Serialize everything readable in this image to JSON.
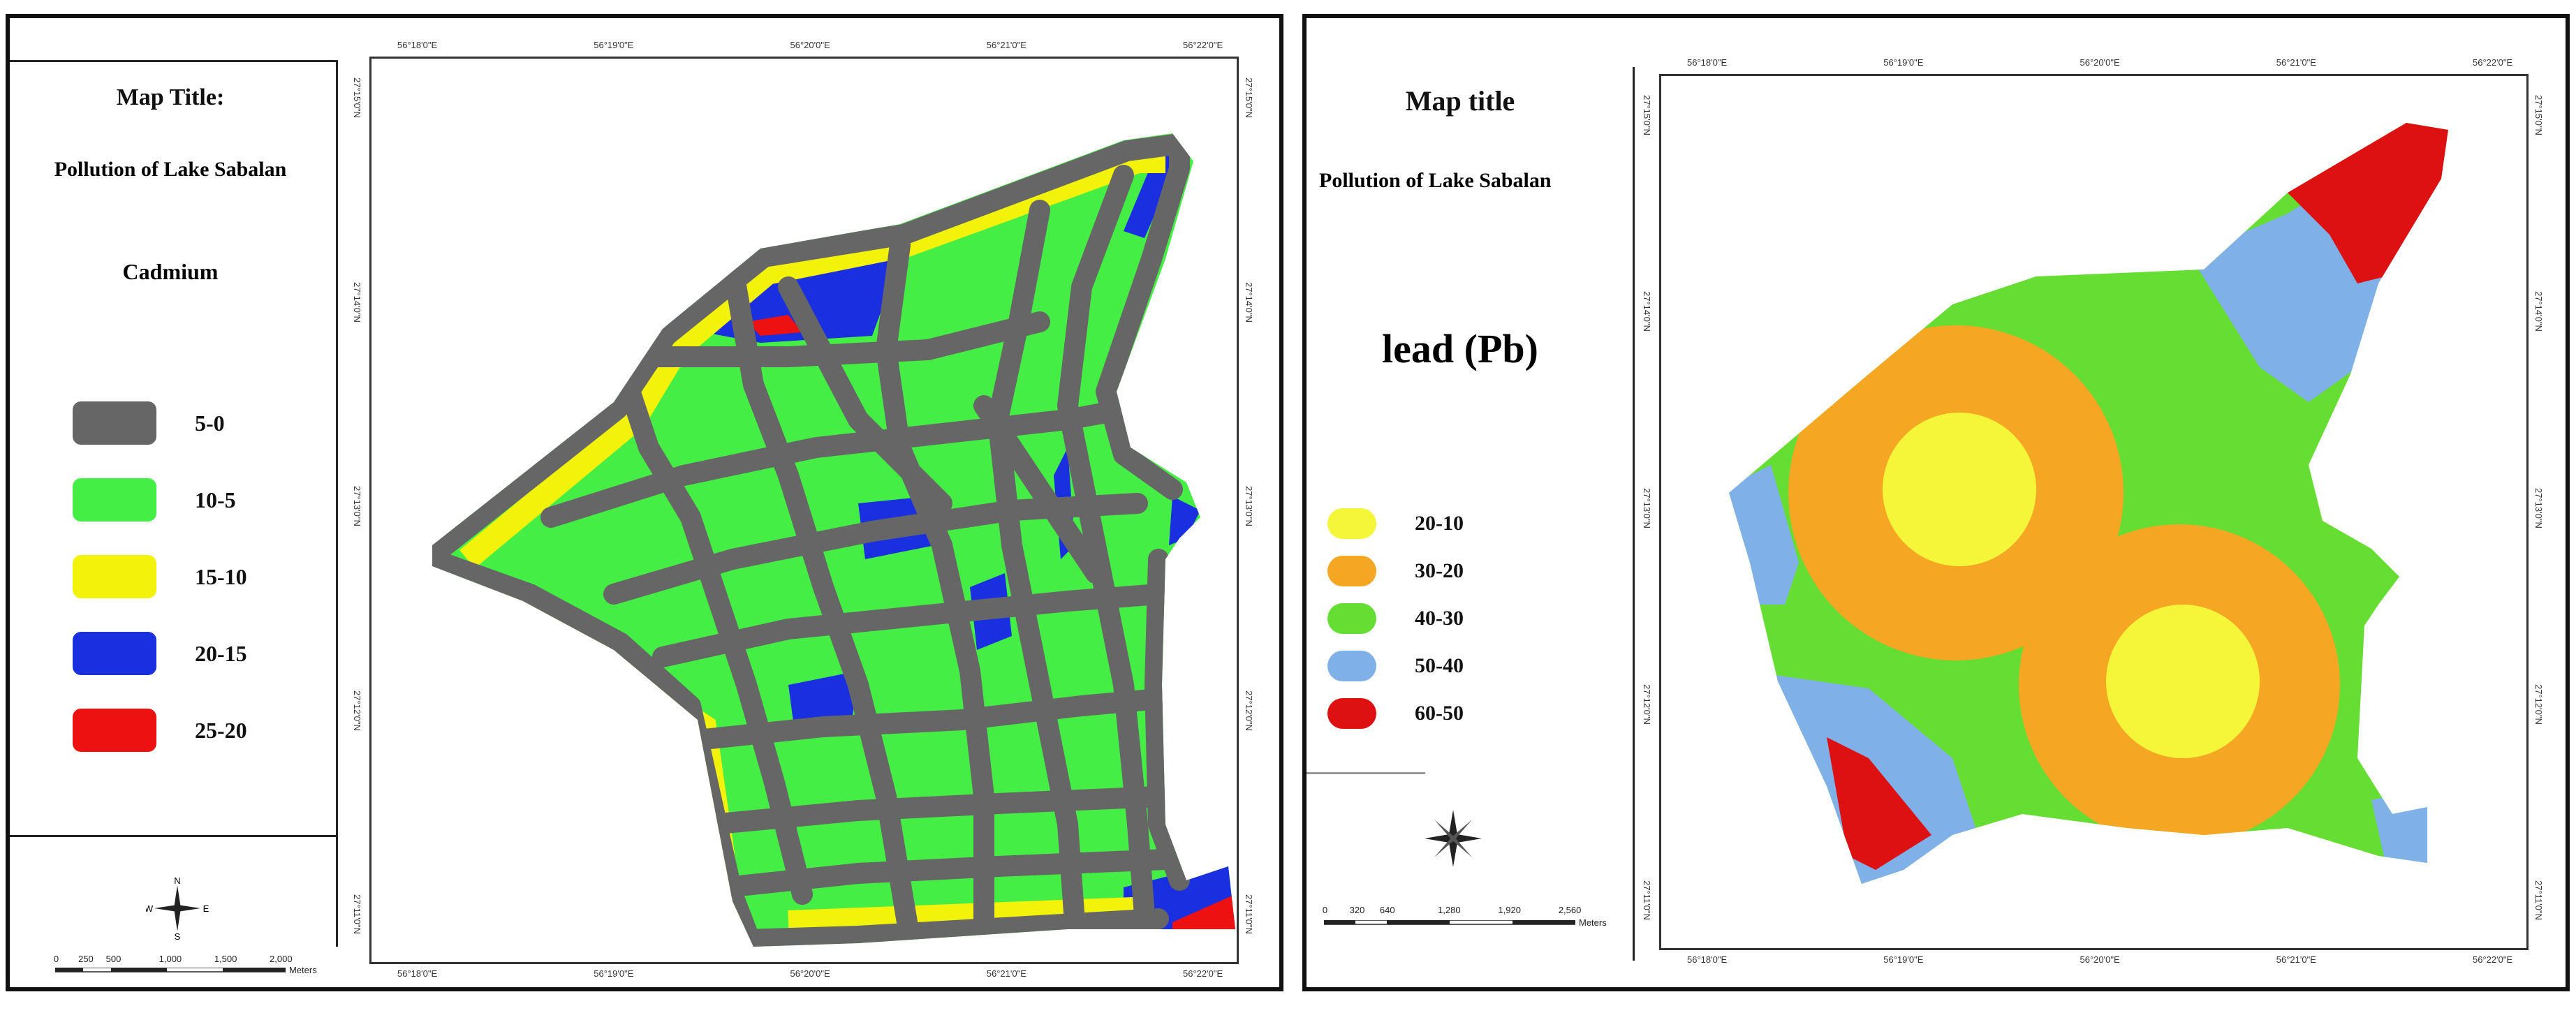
{
  "left_map": {
    "title": "Map Title:",
    "subtitle": "Pollution of Lake Sabalan",
    "layer": "Cadmium",
    "legend": [
      {
        "label": "5-0",
        "color": "#666666"
      },
      {
        "label": "10-5",
        "color": "#44ee44"
      },
      {
        "label": "15-10",
        "color": "#f2f20a"
      },
      {
        "label": "20-15",
        "color": "#1a2fe0"
      },
      {
        "label": "25-20",
        "color": "#ee1111"
      }
    ],
    "north_label": "N",
    "west_label": "W",
    "east_label": "E",
    "south_label": "S",
    "scale_ticks": [
      "0",
      "250",
      "500",
      "1,000",
      "1,500",
      "2,000"
    ],
    "scale_unit": "Meters",
    "top_coords": [
      "56°18'0\"E",
      "56°19'0\"E",
      "56°20'0\"E",
      "56°21'0\"E",
      "56°22'0\"E"
    ],
    "bottom_coords": [
      "56°18'0\"E",
      "56°19'0\"E",
      "56°20'0\"E",
      "56°21'0\"E",
      "56°22'0\"E"
    ],
    "left_coords": [
      "27°15'0\"N",
      "27°14'0\"N",
      "27°13'0\"N",
      "27°12'0\"N",
      "27°11'0\"N"
    ],
    "right_coords": [
      "27°15'0\"N",
      "27°14'0\"N",
      "27°13'0\"N",
      "27°12'0\"N",
      "27°11'0\"N"
    ]
  },
  "right_map": {
    "title": "Map title",
    "subtitle": "Pollution of Lake Sabalan",
    "layer": "lead (Pb)",
    "legend": [
      {
        "label": "20-10",
        "color": "#f5f53a"
      },
      {
        "label": "30-20",
        "color": "#f5a623"
      },
      {
        "label": "40-30",
        "color": "#66dd33"
      },
      {
        "label": "50-40",
        "color": "#7fb0e8"
      },
      {
        "label": "60-50",
        "color": "#dd1111"
      }
    ],
    "scale_ticks": [
      "0",
      "320",
      "640",
      "1,280",
      "1,920",
      "2,560"
    ],
    "scale_unit": "Meters",
    "top_coords": [
      "56°18'0\"E",
      "56°19'0\"E",
      "56°20'0\"E",
      "56°21'0\"E",
      "56°22'0\"E"
    ],
    "bottom_coords": [
      "56°18'0\"E",
      "56°19'0\"E",
      "56°20'0\"E",
      "56°21'0\"E",
      "56°22'0\"E"
    ],
    "left_coords": [
      "27°15'0\"N",
      "27°14'0\"N",
      "27°13'0\"N",
      "27°12'0\"N",
      "27°11'0\"N"
    ],
    "right_coords": [
      "27°15'0\"N",
      "27°14'0\"N",
      "27°13'0\"N",
      "27°12'0\"N",
      "27°11'0\"N"
    ]
  }
}
